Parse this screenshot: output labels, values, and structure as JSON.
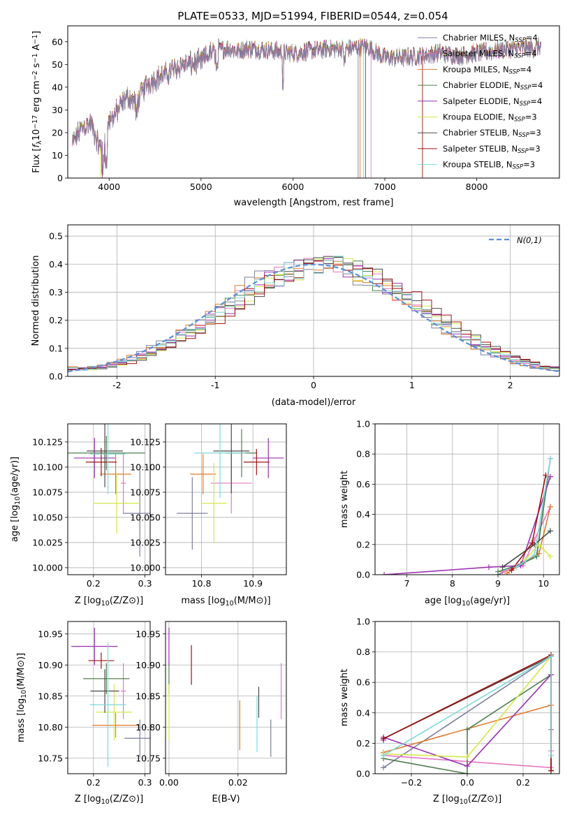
{
  "title": "PLATE=0533, MJD=51994, FIBERID=0544, z=0.054",
  "colors": [
    "#7d7d9d",
    "#e377c2",
    "#e07b30",
    "#4f7f4f",
    "#9b30b0",
    "#d4e84a",
    "#4a4a4a",
    "#a01010",
    "#7fd8d8"
  ],
  "legend": [
    {
      "base": "Chabrier MILES, N",
      "sub": "SSP",
      "val": "=4"
    },
    {
      "base": "Salpeter MILES, N",
      "sub": "SSP",
      "val": "=4"
    },
    {
      "base": "Kroupa MILES, N",
      "sub": "SSP",
      "val": "=4"
    },
    {
      "base": "Chabrier ELODIE, N",
      "sub": "SSP",
      "val": "=4"
    },
    {
      "base": "Salpeter ELODIE, N",
      "sub": "SSP",
      "val": "=4"
    },
    {
      "base": "Kroupa ELODIE, N",
      "sub": "SSP",
      "val": "=3"
    },
    {
      "base": "Chabrier STELIB, N",
      "sub": "SSP",
      "val": "=3"
    },
    {
      "base": "Salpeter STELIB, N",
      "sub": "SSP",
      "val": "=3"
    },
    {
      "base": "Kroupa STELIB, N",
      "sub": "SSP",
      "val": "=3"
    }
  ],
  "chart_data": [
    {
      "id": "spectrum",
      "type": "line",
      "xlabel": "wavelength [Angstrom, rest frame]",
      "ylabel": "Flux [f_λ 10^-17 erg cm^-2 s^-1 A^-1]",
      "xlim": [
        3550,
        8900
      ],
      "ylim": [
        0,
        67
      ],
      "xticks": [
        4000,
        5000,
        6000,
        7000,
        8000
      ],
      "yticks": [
        0,
        10,
        20,
        30,
        40,
        50,
        60
      ],
      "envelope": {
        "x": [
          3600,
          3700,
          3800,
          3900,
          4000,
          4100,
          4200,
          4300,
          4400,
          4500,
          4600,
          4700,
          4800,
          4900,
          5000,
          5100,
          5200,
          5300,
          5400,
          5500,
          5600,
          5800,
          6000,
          6200,
          6400,
          6600,
          6800,
          7000,
          7200,
          7400,
          7600,
          7800,
          8000,
          8200,
          8400,
          8600,
          8700
        ],
        "y": [
          15,
          22,
          24,
          13,
          25,
          30,
          36,
          33,
          41,
          44,
          45,
          48,
          50,
          50,
          51,
          55,
          56,
          57,
          56,
          57,
          57,
          56,
          55,
          56,
          57,
          57,
          58,
          53,
          53,
          54,
          55,
          54,
          55,
          56,
          57,
          57,
          58
        ]
      },
      "grid": false
    },
    {
      "id": "residuals",
      "type": "histogram",
      "xlabel": "(data-model)/error",
      "ylabel": "Normed distribution",
      "xlim": [
        -2.5,
        2.5
      ],
      "ylim": [
        0,
        0.54
      ],
      "xticks": [
        -2,
        -1,
        0,
        1,
        2
      ],
      "yticks": [
        0.0,
        0.1,
        0.2,
        0.3,
        0.4,
        0.5
      ],
      "reference": {
        "label": "N(0,1)",
        "mean": 0,
        "sigma": 1
      },
      "bin_width": 0.1,
      "grid": true
    },
    {
      "id": "age_vs_Z",
      "type": "errorbar",
      "xlabel": "Z [log10(Z/Z⊙)]",
      "ylabel": "age [log10(age/yr)]",
      "xlim": [
        0.15,
        0.31
      ],
      "ylim": [
        9.993,
        10.143
      ],
      "xticks": [
        0.2,
        0.3
      ],
      "yticks": [
        10.0,
        10.025,
        10.05,
        10.075,
        10.1,
        10.125
      ],
      "points": [
        {
          "x": 0.29,
          "xe": 0.033,
          "y": 10.054,
          "ye": 0.043
        },
        {
          "x": 0.258,
          "xe": 0.005,
          "y": 10.084,
          "ye": 0.03
        },
        {
          "x": 0.243,
          "xe": 0.03,
          "y": 10.093,
          "ye": 0.02
        },
        {
          "x": 0.225,
          "xe": 0.075,
          "y": 10.114,
          "ye": 0.017
        },
        {
          "x": 0.202,
          "xe": 0.04,
          "y": 10.109,
          "ye": 0.02
        },
        {
          "x": 0.245,
          "xe": 0.045,
          "y": 10.064,
          "ye": 0.03
        },
        {
          "x": 0.222,
          "xe": 0.035,
          "y": 10.116,
          "ye": 0.036
        },
        {
          "x": 0.215,
          "xe": 0.03,
          "y": 10.105,
          "ye": 0.014
        },
        {
          "x": 0.228,
          "xe": 0.035,
          "y": 10.113,
          "ye": 0.04
        }
      ],
      "grid": true
    },
    {
      "id": "age_vs_mass",
      "type": "errorbar",
      "xlabel": "mass [log10(M/M⊙)]",
      "ylabel": "",
      "xlim": [
        10.73,
        10.965
      ],
      "ylim": [
        9.993,
        10.143
      ],
      "xticks": [
        10.8,
        10.9
      ],
      "yticks": [
        10.0,
        10.025,
        10.05,
        10.075,
        10.1,
        10.125
      ],
      "points": [
        {
          "x": 10.782,
          "xe": 0.03,
          "y": 10.054,
          "ye": 0.036
        },
        {
          "x": 10.858,
          "xe": 0.04,
          "y": 10.084,
          "ye": 0.03
        },
        {
          "x": 10.803,
          "xe": 0.025,
          "y": 10.093,
          "ye": 0.02
        },
        {
          "x": 10.878,
          "xe": 0.03,
          "y": 10.114,
          "ye": 0.024
        },
        {
          "x": 10.93,
          "xe": 0.03,
          "y": 10.109,
          "ye": 0.02
        },
        {
          "x": 10.824,
          "xe": 0.025,
          "y": 10.064,
          "ye": 0.04
        },
        {
          "x": 10.858,
          "xe": 0.035,
          "y": 10.116,
          "ye": 0.042
        },
        {
          "x": 10.907,
          "xe": 0.025,
          "y": 10.105,
          "ye": 0.013
        },
        {
          "x": 10.836,
          "xe": 0.05,
          "y": 10.114,
          "ye": 0.045
        }
      ],
      "grid": true
    },
    {
      "id": "mass_weight_vs_age",
      "type": "line",
      "xlabel": "age [log10(age/yr)]",
      "ylabel": "mass weight",
      "xlim": [
        6.3,
        10.35
      ],
      "ylim": [
        0,
        1
      ],
      "xticks": [
        7,
        8,
        9,
        10
      ],
      "yticks": [
        0.0,
        0.2,
        0.4,
        0.6,
        0.8,
        1.0
      ],
      "series": [
        {
          "x": [
            9.0,
            9.5,
            9.85,
            10.15
          ],
          "y": [
            0.0,
            0.07,
            0.13,
            0.77
          ]
        },
        {
          "x": [
            9.1,
            9.55,
            9.8,
            10.15
          ],
          "y": [
            0.02,
            0.06,
            0.23,
            0.45
          ]
        },
        {
          "x": [
            9.2,
            9.6,
            9.9,
            10.15
          ],
          "y": [
            0.01,
            0.09,
            0.14,
            0.45
          ]
        },
        {
          "x": [
            9.0,
            9.5,
            9.85,
            10.1
          ],
          "y": [
            0.02,
            0.07,
            0.12,
            0.65
          ]
        },
        {
          "x": [
            6.5,
            8.8,
            9.5,
            10.15
          ],
          "y": [
            0.0,
            0.05,
            0.06,
            0.65
          ]
        },
        {
          "x": [
            9.6,
            9.9,
            10.15
          ],
          "y": [
            0.1,
            0.2,
            0.12
          ]
        },
        {
          "x": [
            9.1,
            9.8,
            10.15
          ],
          "y": [
            0.05,
            0.2,
            0.29
          ]
        },
        {
          "x": [
            9.3,
            9.75,
            10.05
          ],
          "y": [
            0.03,
            0.21,
            0.66
          ]
        },
        {
          "x": [
            9.4,
            9.8,
            10.15
          ],
          "y": [
            0.05,
            0.13,
            0.77
          ]
        }
      ],
      "grid": true
    },
    {
      "id": "mass_vs_Z",
      "type": "errorbar",
      "xlabel": "Z [log10(Z/Z⊙)]",
      "ylabel": "mass [log10(M/M⊙)]",
      "xlim": [
        0.15,
        0.31
      ],
      "ylim": [
        10.725,
        10.97
      ],
      "xticks": [
        0.2,
        0.3
      ],
      "yticks": [
        10.75,
        10.8,
        10.85,
        10.9,
        10.95
      ],
      "points": [
        {
          "x": 0.29,
          "xe": 0.03,
          "y": 10.782,
          "ye": 0.03
        },
        {
          "x": 0.258,
          "xe": 0.005,
          "y": 10.858,
          "ye": 0.045
        },
        {
          "x": 0.243,
          "xe": 0.045,
          "y": 10.803,
          "ye": 0.02
        },
        {
          "x": 0.225,
          "xe": 0.045,
          "y": 10.878,
          "ye": 0.025
        },
        {
          "x": 0.202,
          "xe": 0.045,
          "y": 10.93,
          "ye": 0.03
        },
        {
          "x": 0.24,
          "xe": 0.035,
          "y": 10.824,
          "ye": 0.045
        },
        {
          "x": 0.222,
          "xe": 0.028,
          "y": 10.858,
          "ye": 0.035
        },
        {
          "x": 0.215,
          "xe": 0.025,
          "y": 10.907,
          "ye": 0.013
        },
        {
          "x": 0.228,
          "xe": 0.035,
          "y": 10.836,
          "ye": 0.1
        }
      ],
      "grid": true
    },
    {
      "id": "mass_vs_EBV",
      "type": "errorbar",
      "xlabel": "E(B-V)",
      "ylabel": "",
      "xlim": [
        -0.001,
        0.034
      ],
      "ylim": [
        10.725,
        10.97
      ],
      "xticks": [
        0.0,
        0.02
      ],
      "yticks": [
        10.75,
        10.8,
        10.85,
        10.9,
        10.95
      ],
      "points": [
        {
          "x": 0.0295,
          "xe": 0,
          "y": 10.782,
          "ye": 0.03
        },
        {
          "x": 0.0325,
          "xe": 0,
          "y": 10.858,
          "ye": 0.045
        },
        {
          "x": 0.0205,
          "xe": 0,
          "y": 10.803,
          "ye": 0.04
        },
        {
          "x": 0.0,
          "xe": 0,
          "y": 10.878,
          "ye": 0.025
        },
        {
          "x": 0.0,
          "xe": 0,
          "y": 10.93,
          "ye": 0.03
        },
        {
          "x": 0.0,
          "xe": 0,
          "y": 10.824,
          "ye": 0.045
        },
        {
          "x": 0.026,
          "xe": 0,
          "y": 10.84,
          "ye": 0.025
        },
        {
          "x": 0.0065,
          "xe": 0,
          "y": 10.9,
          "ye": 0.032
        },
        {
          "x": 0.0255,
          "xe": 0,
          "y": 10.805,
          "ye": 0.045
        }
      ],
      "grid": true
    },
    {
      "id": "mass_weight_vs_Z",
      "type": "line",
      "xlabel": "Z [log10(Z/Z⊙)]",
      "ylabel": "mass weight",
      "xlim": [
        -0.33,
        0.33
      ],
      "ylim": [
        0,
        1
      ],
      "xticks": [
        -0.2,
        0.0,
        0.2
      ],
      "yticks": [
        0.0,
        0.2,
        0.4,
        0.6,
        0.8,
        1.0
      ],
      "series": [
        {
          "x": [
            -0.3,
            0.3,
            0.3,
            0.3
          ],
          "y": [
            0.04,
            0.77,
            0.65,
            0.29
          ]
        },
        {
          "x": [
            -0.3,
            0.3,
            0.3
          ],
          "y": [
            0.12,
            0.04,
            0.15
          ]
        },
        {
          "x": [
            -0.3,
            0.3,
            0.3
          ],
          "y": [
            0.14,
            0.45,
            0.02
          ]
        },
        {
          "x": [
            -0.3,
            0.0,
            0.0,
            0.3
          ],
          "y": [
            0.1,
            0.0,
            0.29,
            0.65
          ]
        },
        {
          "x": [
            -0.3,
            -0.3,
            0.0,
            0.3
          ],
          "y": [
            0.22,
            0.24,
            0.05,
            0.65
          ]
        },
        {
          "x": [
            -0.3,
            0.0,
            0.3
          ],
          "y": [
            0.13,
            0.11,
            0.77
          ]
        },
        {
          "x": [
            -0.3,
            0.3,
            0.3
          ],
          "y": [
            0.23,
            0.77,
            0.02
          ]
        },
        {
          "x": [
            -0.3,
            0.3,
            0.3
          ],
          "y": [
            0.23,
            0.78,
            0.02
          ]
        },
        {
          "x": [
            -0.3,
            0.3,
            0.3
          ],
          "y": [
            0.12,
            0.77,
            0.12
          ]
        }
      ],
      "grid": true
    }
  ]
}
